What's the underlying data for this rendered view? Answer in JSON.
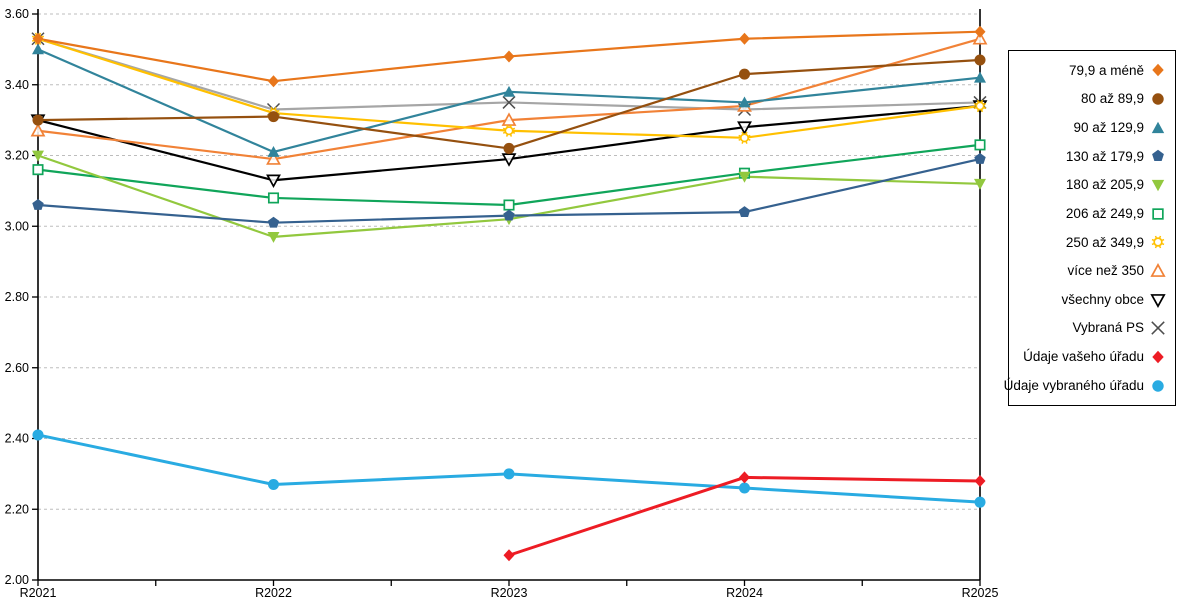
{
  "chart_data": {
    "type": "line",
    "title": "",
    "xlabel": "",
    "ylabel": "",
    "categories": [
      "R2021",
      "R2022",
      "R2023",
      "R2024",
      "R2025"
    ],
    "y_ticks": [
      "2.00",
      "2.20",
      "2.40",
      "2.60",
      "2.80",
      "3.00",
      "3.20",
      "3.40",
      "3.60"
    ],
    "ylim": [
      2.0,
      3.6
    ],
    "grid": "horizontal-dashed",
    "gridline_color": "#BDBDBD",
    "axis_color": "#000000",
    "legend_position": "right",
    "series": [
      {
        "name": "79,9 a méně",
        "marker": "diamond",
        "color": "#E8761B",
        "values": [
          3.53,
          3.41,
          3.48,
          3.53,
          3.55
        ]
      },
      {
        "name": "80 až 89,9",
        "marker": "circle",
        "color": "#95500F",
        "values": [
          3.3,
          3.31,
          3.22,
          3.43,
          3.47
        ]
      },
      {
        "name": "90 až 129,9",
        "marker": "triangle-up",
        "color": "#31849B",
        "values": [
          3.5,
          3.21,
          3.38,
          3.35,
          3.42
        ]
      },
      {
        "name": "130 až 179,9",
        "marker": "pentagon",
        "color": "#35618F",
        "values": [
          3.06,
          3.01,
          3.03,
          3.04,
          3.19
        ]
      },
      {
        "name": "180 až 205,9",
        "marker": "triangle-down",
        "color": "#92C83E",
        "values": [
          3.2,
          2.97,
          3.02,
          3.14,
          3.12
        ]
      },
      {
        "name": "206 až 249,9",
        "marker": "square-open",
        "color": "#10A55A",
        "values": [
          3.16,
          3.08,
          3.06,
          3.15,
          3.23
        ]
      },
      {
        "name": "250 až 349,9",
        "marker": "sun-open",
        "color": "#FFC000",
        "values": [
          3.53,
          3.32,
          3.27,
          3.25,
          3.34
        ]
      },
      {
        "name": "více než 350",
        "marker": "triangle-up-open",
        "color": "#F18237",
        "values": [
          3.27,
          3.19,
          3.3,
          3.34,
          3.53
        ]
      },
      {
        "name": "všechny obce",
        "marker": "triangle-down-open",
        "color": "#000000",
        "values": [
          3.3,
          3.13,
          3.19,
          3.28,
          3.34
        ]
      },
      {
        "name": "Vybraná PS",
        "marker": "x",
        "color": "#4D4D4D",
        "line_color": "#A6A6A6",
        "values": [
          3.53,
          3.33,
          3.35,
          3.33,
          3.35
        ]
      },
      {
        "name": "Údaje vašeho úřadu",
        "marker": "diamond",
        "color": "#ED1C24",
        "line_width": 3,
        "values": [
          null,
          null,
          2.07,
          2.29,
          2.28
        ]
      },
      {
        "name": "Údaje vybraného úřadu",
        "marker": "circle",
        "color": "#29ABE2",
        "line_width": 3,
        "values": [
          2.41,
          2.27,
          2.3,
          2.26,
          2.22
        ]
      }
    ]
  }
}
